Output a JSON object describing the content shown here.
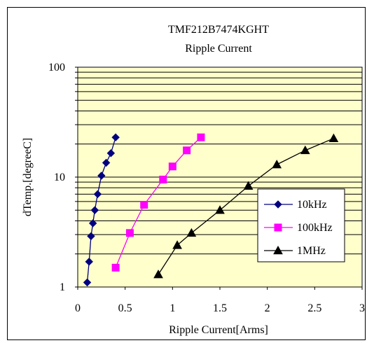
{
  "chart_data": {
    "type": "line",
    "title": "TMF212B7474KGHT",
    "subtitle": "Ripple Current",
    "xlabel": "Ripple Current[Arms]",
    "ylabel": "dTemp.[degreeC]",
    "xlim": [
      0,
      3
    ],
    "ylim": [
      1,
      100
    ],
    "yscale": "log",
    "x_ticks": [
      "0",
      "0.5",
      "1",
      "1.5",
      "2",
      "2.5",
      "3"
    ],
    "y_ticks": [
      "1",
      "10",
      "100"
    ],
    "plot_background": "#ffffcc",
    "grid": "horizontal",
    "legend_position": "right",
    "series": [
      {
        "name": "10kHz",
        "color": "#000080",
        "marker": "diamond",
        "points": [
          [
            0.1,
            1.1
          ],
          [
            0.12,
            1.7
          ],
          [
            0.14,
            2.9
          ],
          [
            0.16,
            3.8
          ],
          [
            0.18,
            5.0
          ],
          [
            0.21,
            7.0
          ],
          [
            0.25,
            10.3
          ],
          [
            0.3,
            13.5
          ],
          [
            0.35,
            16.5
          ],
          [
            0.4,
            23.0
          ]
        ]
      },
      {
        "name": "100kHz",
        "color": "#ff00ff",
        "marker": "square",
        "points": [
          [
            0.4,
            1.5
          ],
          [
            0.55,
            3.1
          ],
          [
            0.7,
            5.6
          ],
          [
            0.9,
            9.5
          ],
          [
            1.0,
            12.5
          ],
          [
            1.15,
            17.5
          ],
          [
            1.3,
            23.0
          ]
        ]
      },
      {
        "name": "1MHz",
        "color": "#000000",
        "marker": "triangle",
        "points": [
          [
            0.85,
            1.3
          ],
          [
            1.05,
            2.4
          ],
          [
            1.2,
            3.1
          ],
          [
            1.5,
            5.0
          ],
          [
            1.8,
            8.3
          ],
          [
            2.1,
            13.0
          ],
          [
            2.4,
            17.5
          ],
          [
            2.7,
            22.5
          ]
        ]
      }
    ]
  }
}
